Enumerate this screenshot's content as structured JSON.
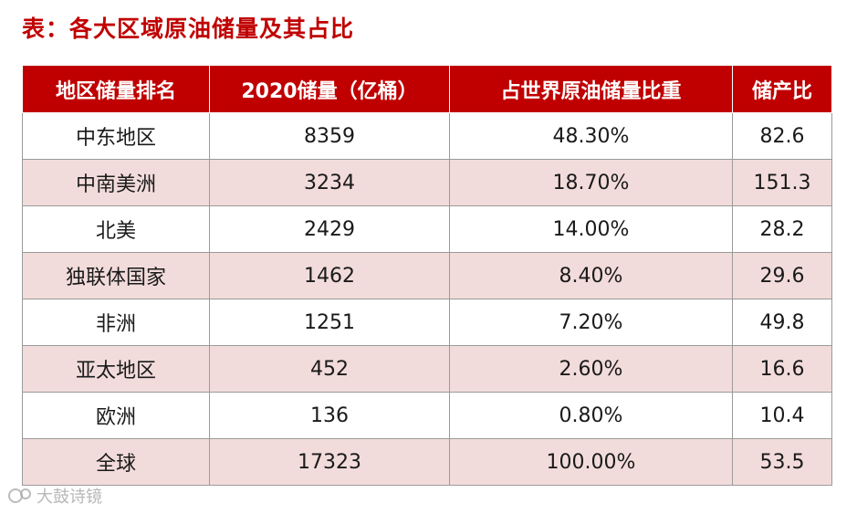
{
  "title": "表：各大区域原油储量及其占比",
  "table": {
    "headers": [
      "地区储量排名",
      "2020储量（亿桶）",
      "占世界原油储量比重",
      "储产比"
    ],
    "rows": [
      [
        "中东地区",
        "8359",
        "48.30%",
        "82.6"
      ],
      [
        "中南美洲",
        "3234",
        "18.70%",
        "151.3"
      ],
      [
        "北美",
        "2429",
        "14.00%",
        "28.2"
      ],
      [
        "独联体国家",
        "1462",
        "8.40%",
        "29.6"
      ],
      [
        "非洲",
        "1251",
        "7.20%",
        "49.8"
      ],
      [
        "亚太地区",
        "452",
        "2.60%",
        "16.6"
      ],
      [
        "欧洲",
        "136",
        "0.80%",
        "10.4"
      ],
      [
        "全球",
        "17323",
        "100.00%",
        "53.5"
      ]
    ]
  },
  "watermark": "大鼓诗镜",
  "colors": {
    "title": "#c00000",
    "header_bg": "#c00000",
    "stripe_bg": "#f2dcdb"
  }
}
